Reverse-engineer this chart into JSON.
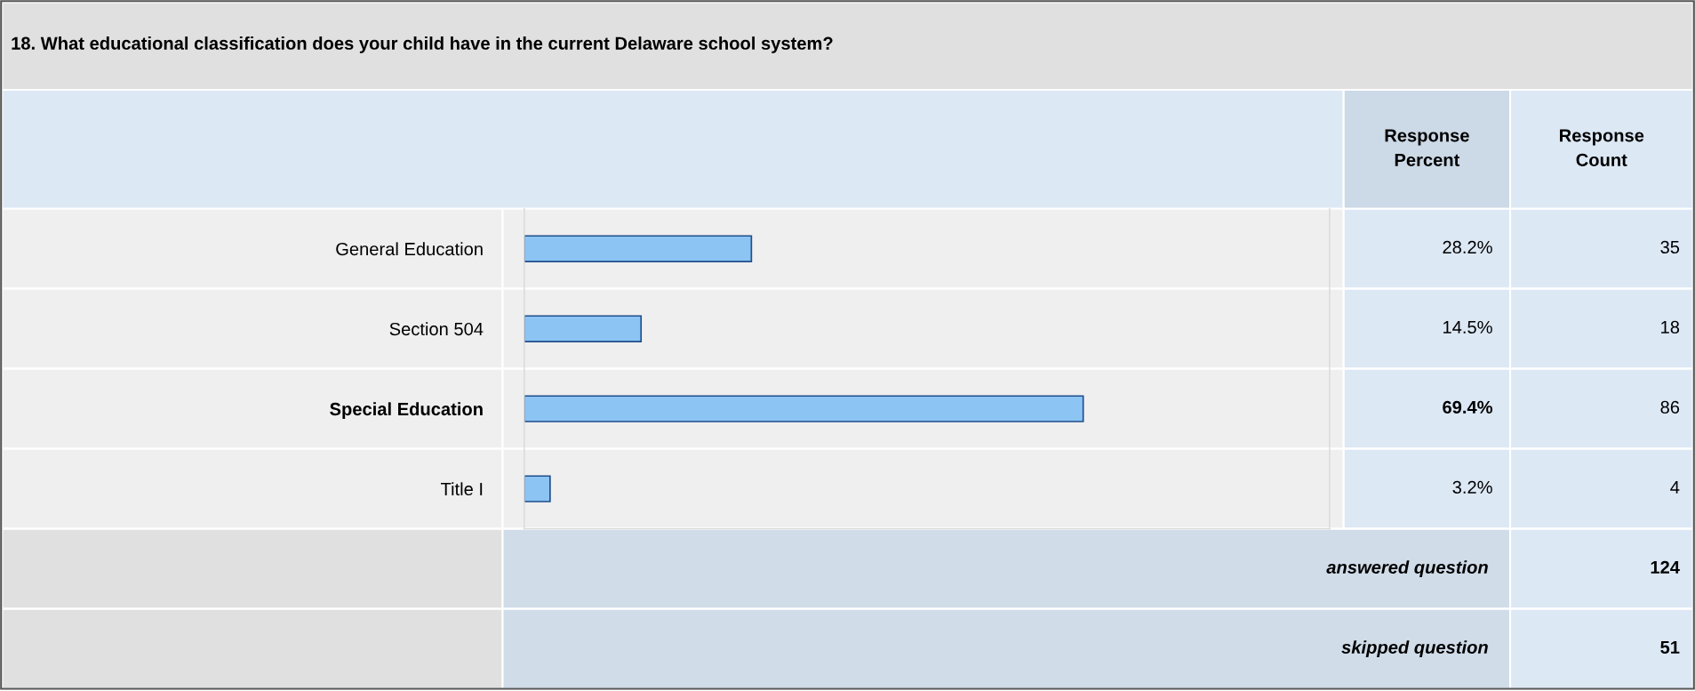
{
  "chart_data": {
    "type": "bar",
    "orientation": "horizontal",
    "title": "18. What educational classification does your child have in the current Delaware school system?",
    "categories": [
      "General Education",
      "Section 504",
      "Special Education",
      "Title I"
    ],
    "values": [
      28.2,
      14.5,
      69.4,
      3.2
    ],
    "value_labels": [
      "28.2%",
      "14.5%",
      "69.4%",
      "3.2%"
    ],
    "color": "#8cc4f4",
    "xlim": [
      0,
      100
    ],
    "tick_labels": "y",
    "grid": false,
    "legend": false,
    "annotations": [
      "Response Percent",
      "Response Count",
      "35",
      "18",
      "86",
      "4",
      "answered question",
      "124",
      "skipped question",
      "51"
    ]
  }
}
